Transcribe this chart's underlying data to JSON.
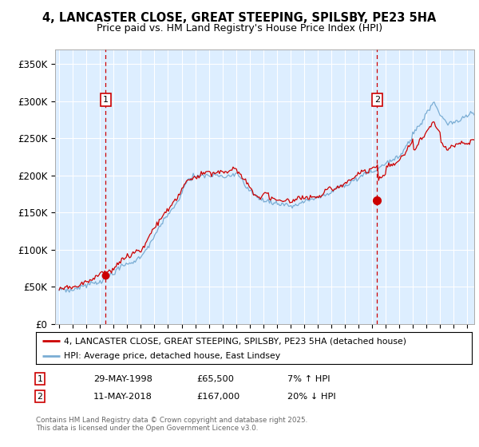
{
  "title_line1": "4, LANCASTER CLOSE, GREAT STEEPING, SPILSBY, PE23 5HA",
  "title_line2": "Price paid vs. HM Land Registry's House Price Index (HPI)",
  "ylim": [
    0,
    370000
  ],
  "yticks": [
    0,
    50000,
    100000,
    150000,
    200000,
    250000,
    300000,
    350000
  ],
  "ytick_labels": [
    "£0",
    "£50K",
    "£100K",
    "£150K",
    "£200K",
    "£250K",
    "£300K",
    "£350K"
  ],
  "xlim_start": 1994.7,
  "xlim_end": 2025.5,
  "purchase1_year": 1998.41,
  "purchase1_price": 65500,
  "purchase1_label": "1",
  "purchase1_text": "29-MAY-1998",
  "purchase1_amount": "£65,500",
  "purchase1_hpi": "7% ↑ HPI",
  "purchase2_year": 2018.36,
  "purchase2_price": 167000,
  "purchase2_label": "2",
  "purchase2_text": "11-MAY-2018",
  "purchase2_amount": "£167,000",
  "purchase2_hpi": "20% ↓ HPI",
  "red_line_color": "#cc0000",
  "blue_line_color": "#7aadd4",
  "bg_color": "#ddeeff",
  "grid_color": "#ffffff",
  "legend_line1": "4, LANCASTER CLOSE, GREAT STEEPING, SPILSBY, PE23 5HA (detached house)",
  "legend_line2": "HPI: Average price, detached house, East Lindsey",
  "footnote": "Contains HM Land Registry data © Crown copyright and database right 2025.\nThis data is licensed under the Open Government Licence v3.0."
}
